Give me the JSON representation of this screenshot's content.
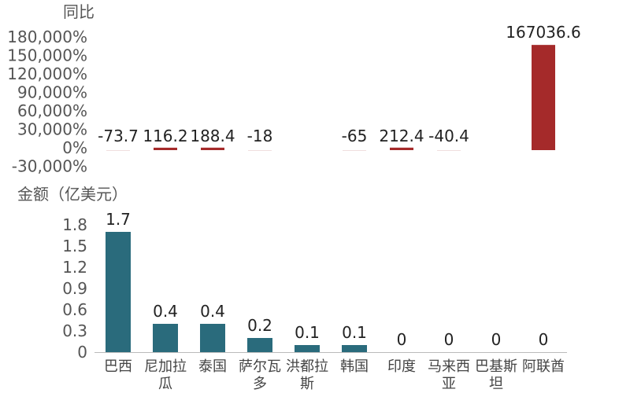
{
  "chart_data": [
    {
      "type": "bar",
      "ylabel": "同比",
      "ylim": [
        -30000,
        180000
      ],
      "yticks": [
        "180,000%",
        "150,000%",
        "120,000%",
        "90,000%",
        "60,000%",
        "30,000%",
        "0%",
        "-30,000%"
      ],
      "tick_values": [
        180000,
        150000,
        120000,
        90000,
        60000,
        30000,
        0,
        -30000
      ],
      "categories": [
        "巴西",
        "尼加拉瓜",
        "泰国",
        "萨尔瓦多",
        "洪都拉斯",
        "韩国",
        "印度",
        "马来西亚",
        "巴基斯坦",
        "阿联酋"
      ],
      "values": [
        -73.7,
        116.2,
        188.4,
        -18,
        null,
        -65,
        212.4,
        -40.4,
        null,
        167036.6
      ],
      "labels": [
        "-73.7",
        "116.2",
        "188.4",
        "-18",
        "",
        "-65",
        "212.4",
        "-40.4",
        "",
        "167036.6"
      ],
      "colors": {
        "positive": "#a52a2a"
      }
    },
    {
      "type": "bar",
      "ylabel": "金额（亿美元）",
      "ylim": [
        0,
        1.9
      ],
      "yticks": [
        "1.8",
        "1.5",
        "1.2",
        "0.9",
        "0.6",
        "0.3",
        "0"
      ],
      "tick_values": [
        1.8,
        1.5,
        1.2,
        0.9,
        0.6,
        0.3,
        0
      ],
      "categories": [
        "巴西",
        "尼加拉瓜",
        "泰国",
        "萨尔瓦多",
        "洪都拉斯",
        "韩国",
        "印度",
        "马来西亚",
        "巴基斯坦",
        "阿联酋"
      ],
      "category_lines": [
        [
          "巴西"
        ],
        [
          "尼加拉",
          "瓜"
        ],
        [
          "泰国"
        ],
        [
          "萨尔瓦",
          "多"
        ],
        [
          "洪都拉",
          "斯"
        ],
        [
          "韩国"
        ],
        [
          "印度"
        ],
        [
          "马来西",
          "亚"
        ],
        [
          "巴基斯",
          "坦"
        ],
        [
          "阿联酋"
        ]
      ],
      "values": [
        1.7,
        0.4,
        0.4,
        0.2,
        0.1,
        0.1,
        0,
        0,
        0,
        0
      ],
      "labels": [
        "1.7",
        "0.4",
        "0.4",
        "0.2",
        "0.1",
        "0.1",
        "0",
        "0",
        "0",
        "0"
      ],
      "colors": {
        "bar": "#2a6b7c",
        "axis": "#bbbbbb"
      }
    }
  ]
}
